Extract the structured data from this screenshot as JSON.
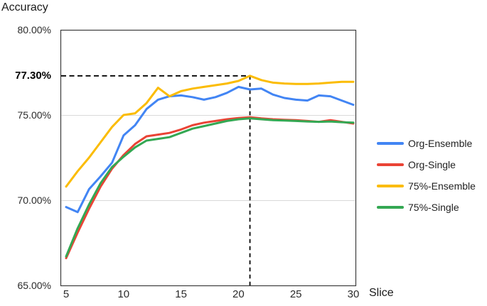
{
  "chart_data": {
    "type": "line",
    "title": "Accuracy",
    "xlabel": "Slice",
    "grid": "horizontal",
    "legend_position": "right",
    "xlim": [
      4.5,
      30.2
    ],
    "ylim": [
      65,
      80
    ],
    "x": [
      5,
      6,
      7,
      8,
      9,
      10,
      11,
      12,
      13,
      14,
      15,
      16,
      17,
      18,
      19,
      20,
      21,
      22,
      23,
      24,
      25,
      26,
      27,
      28,
      29,
      30
    ],
    "series": [
      {
        "name": "Org-Ensemble",
        "color": "#4285F4",
        "values": [
          69.6,
          69.3,
          70.65,
          71.4,
          72.2,
          73.8,
          74.4,
          75.35,
          75.9,
          76.1,
          76.15,
          76.05,
          75.9,
          76.05,
          76.3,
          76.65,
          76.5,
          76.55,
          76.2,
          76.0,
          75.9,
          75.85,
          76.15,
          76.1,
          75.85,
          75.6
        ]
      },
      {
        "name": "Org-Single",
        "color": "#EA4335",
        "values": [
          66.6,
          68.1,
          69.5,
          70.8,
          71.85,
          72.65,
          73.3,
          73.75,
          73.85,
          73.95,
          74.15,
          74.4,
          74.55,
          74.65,
          74.75,
          74.82,
          74.87,
          74.8,
          74.75,
          74.72,
          74.7,
          74.65,
          74.6,
          74.7,
          74.6,
          74.5
        ]
      },
      {
        "name": "75%-Ensemble",
        "color": "#FBBC04",
        "values": [
          70.8,
          71.7,
          72.5,
          73.4,
          74.3,
          75.0,
          75.1,
          75.7,
          76.6,
          76.1,
          76.4,
          76.55,
          76.65,
          76.75,
          76.85,
          77.0,
          77.3,
          77.05,
          76.9,
          76.85,
          76.82,
          76.82,
          76.85,
          76.9,
          76.95,
          76.95
        ]
      },
      {
        "name": "75%-Single",
        "color": "#34A853",
        "values": [
          66.7,
          68.35,
          69.75,
          71.0,
          71.95,
          72.55,
          73.1,
          73.5,
          73.6,
          73.7,
          73.95,
          74.2,
          74.35,
          74.5,
          74.65,
          74.75,
          74.8,
          74.75,
          74.7,
          74.68,
          74.65,
          74.62,
          74.6,
          74.62,
          74.58,
          74.55
        ]
      }
    ],
    "y_ticks": [
      {
        "value": 80,
        "label": "80.00%"
      },
      {
        "value": 75,
        "label": "75.00%"
      },
      {
        "value": 70,
        "label": "70.00%"
      },
      {
        "value": 65,
        "label": "65.00%"
      }
    ],
    "x_ticks": [
      {
        "value": 5,
        "label": "5"
      },
      {
        "value": 10,
        "label": "10"
      },
      {
        "value": 15,
        "label": "15"
      },
      {
        "value": 20,
        "label": "20"
      },
      {
        "value": 25,
        "label": "25"
      },
      {
        "value": 30,
        "label": "30"
      }
    ],
    "annotation": {
      "label": "77.30%",
      "x": 21,
      "y": 77.3
    },
    "colors": {
      "plot_border": "#3c3c3c",
      "gridline": "#d9d9d9",
      "annotation_line": "#000000"
    }
  }
}
